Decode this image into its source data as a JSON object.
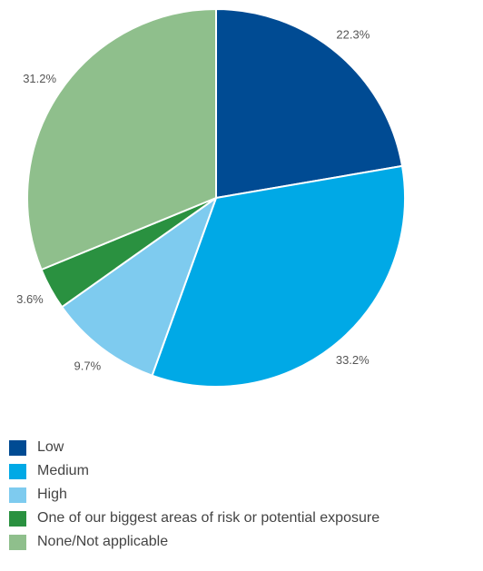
{
  "chart_data": {
    "type": "pie",
    "title": "",
    "slices": [
      {
        "label": "Low",
        "value": 22.3,
        "display": "22.3%",
        "color": "#004b93"
      },
      {
        "label": "Medium",
        "value": 33.2,
        "display": "33.2%",
        "color": "#00a9e6"
      },
      {
        "label": "High",
        "value": 9.7,
        "display": "9.7%",
        "color": "#7ecbef"
      },
      {
        "label": "One of our biggest areas of risk or potential exposure",
        "value": 3.6,
        "display": "3.6%",
        "color": "#2a9140"
      },
      {
        "label": "None/Not applicable",
        "value": 31.2,
        "display": "31.2%",
        "color": "#8fbf8c"
      }
    ],
    "legend_placement": "bottom-left"
  }
}
